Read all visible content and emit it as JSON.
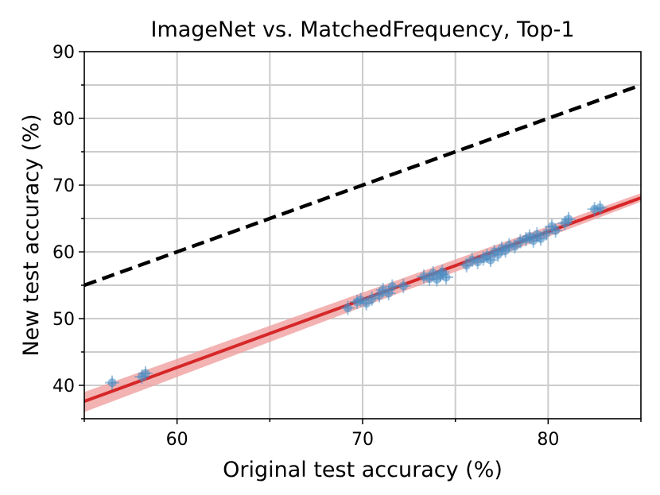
{
  "chart_data": {
    "type": "scatter",
    "title": "ImageNet vs. MatchedFrequency, Top-1",
    "xlabel": "Original test accuracy (%)",
    "ylabel": "New test accuracy (%)",
    "xlim": [
      55,
      85
    ],
    "ylim": [
      35,
      90
    ],
    "xticks": [
      60,
      70,
      80
    ],
    "yticks": [
      40,
      50,
      60,
      70,
      80,
      90
    ],
    "grid": true,
    "legend": "none",
    "colors": {
      "points": "#4a8dc5",
      "error_bars": "#4a8dc5",
      "fit_line": "#d62728",
      "fit_band": "#f0a0a0",
      "reference_line": "#000000",
      "grid": "#cccccc"
    },
    "reference_line": {
      "style": "dashed",
      "x": [
        55,
        85
      ],
      "y": [
        55,
        85
      ]
    },
    "fit_line": {
      "x": [
        55,
        85
      ],
      "y": [
        37.6,
        68.1
      ],
      "band_x": [
        55,
        85
      ],
      "band_lower": [
        36.0,
        67.5
      ],
      "band_upper": [
        39.0,
        68.8
      ]
    },
    "points": {
      "x": [
        56.5,
        58.1,
        58.3,
        69.2,
        69.7,
        69.9,
        70.2,
        70.5,
        70.9,
        71.1,
        71.4,
        71.6,
        72.2,
        73.3,
        73.6,
        73.8,
        74.0,
        74.2,
        74.3,
        74.5,
        75.6,
        75.9,
        76.2,
        76.5,
        76.7,
        76.9,
        77.1,
        77.3,
        77.5,
        77.7,
        77.9,
        78.2,
        78.5,
        78.8,
        79.0,
        79.2,
        79.4,
        79.6,
        79.9,
        80.2,
        80.4,
        80.9,
        81.1,
        82.5,
        82.8
      ],
      "y": [
        40.4,
        41.3,
        41.8,
        51.6,
        52.5,
        52.8,
        52.3,
        53.0,
        53.5,
        54.3,
        53.8,
        54.8,
        54.9,
        56.3,
        56.0,
        56.8,
        55.9,
        56.6,
        57.0,
        56.2,
        58.0,
        58.8,
        58.5,
        59.0,
        59.4,
        58.8,
        60.0,
        59.6,
        60.5,
        60.2,
        61.0,
        60.8,
        61.6,
        61.9,
        62.3,
        61.7,
        62.6,
        62.0,
        62.8,
        63.8,
        63.2,
        64.3,
        64.9,
        66.4,
        66.6
      ]
    }
  }
}
